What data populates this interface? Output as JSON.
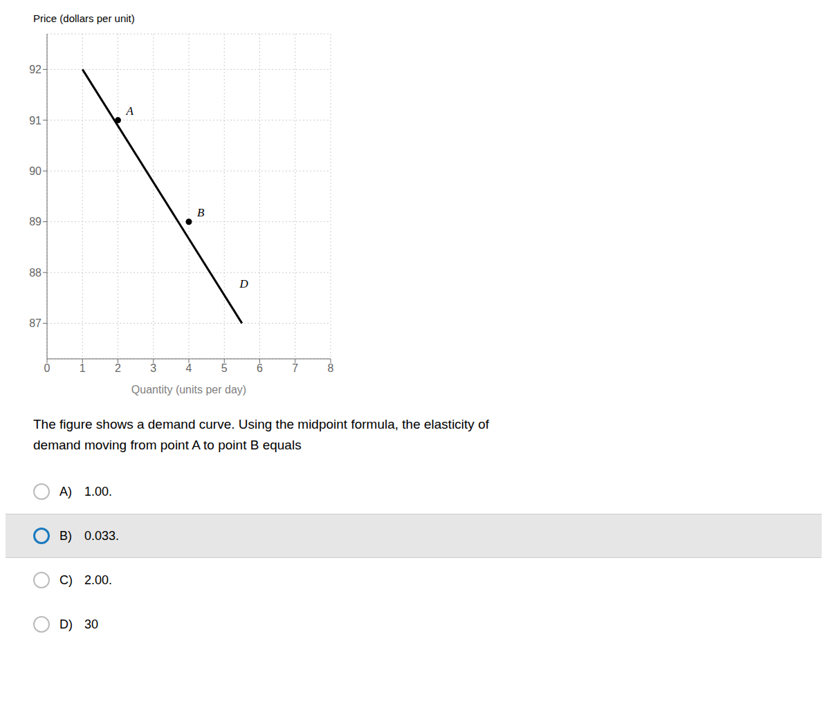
{
  "chart_data": {
    "type": "line",
    "xlabel": "Quantity (units per day)",
    "ylabel": "Price (dollars per unit)",
    "xlim": [
      0,
      8
    ],
    "ylim": [
      86.3,
      92.7
    ],
    "xticks": [
      0,
      1,
      2,
      3,
      4,
      5,
      6,
      7,
      8
    ],
    "yticks": [
      87,
      88,
      89,
      90,
      91,
      92
    ],
    "grid": true,
    "series": [
      {
        "type": "line",
        "x": [
          1.0,
          5.5
        ],
        "values": [
          92.0,
          87.0
        ],
        "color": "#000000"
      },
      {
        "type": "scatter",
        "x": [
          2,
          4
        ],
        "values": [
          91,
          89
        ],
        "color": "#000000"
      }
    ],
    "annotations": [
      {
        "text": "A",
        "x": 2,
        "y": 91
      },
      {
        "text": "B",
        "x": 4,
        "y": 89
      },
      {
        "text": "D",
        "x": 5.2,
        "y": 87.6
      }
    ],
    "question": [
      "The figure shows a demand curve. Using the midpoint formula, the elasticity of",
      "demand moving from point A to point B equals"
    ],
    "options": [
      {
        "label": "A)",
        "text": "1.00.",
        "selected": false
      },
      {
        "label": "B)",
        "text": "0.033.",
        "selected": true
      },
      {
        "label": "C)",
        "text": "2.00.",
        "selected": false
      },
      {
        "label": "D)",
        "text": "30",
        "selected": false
      }
    ]
  }
}
